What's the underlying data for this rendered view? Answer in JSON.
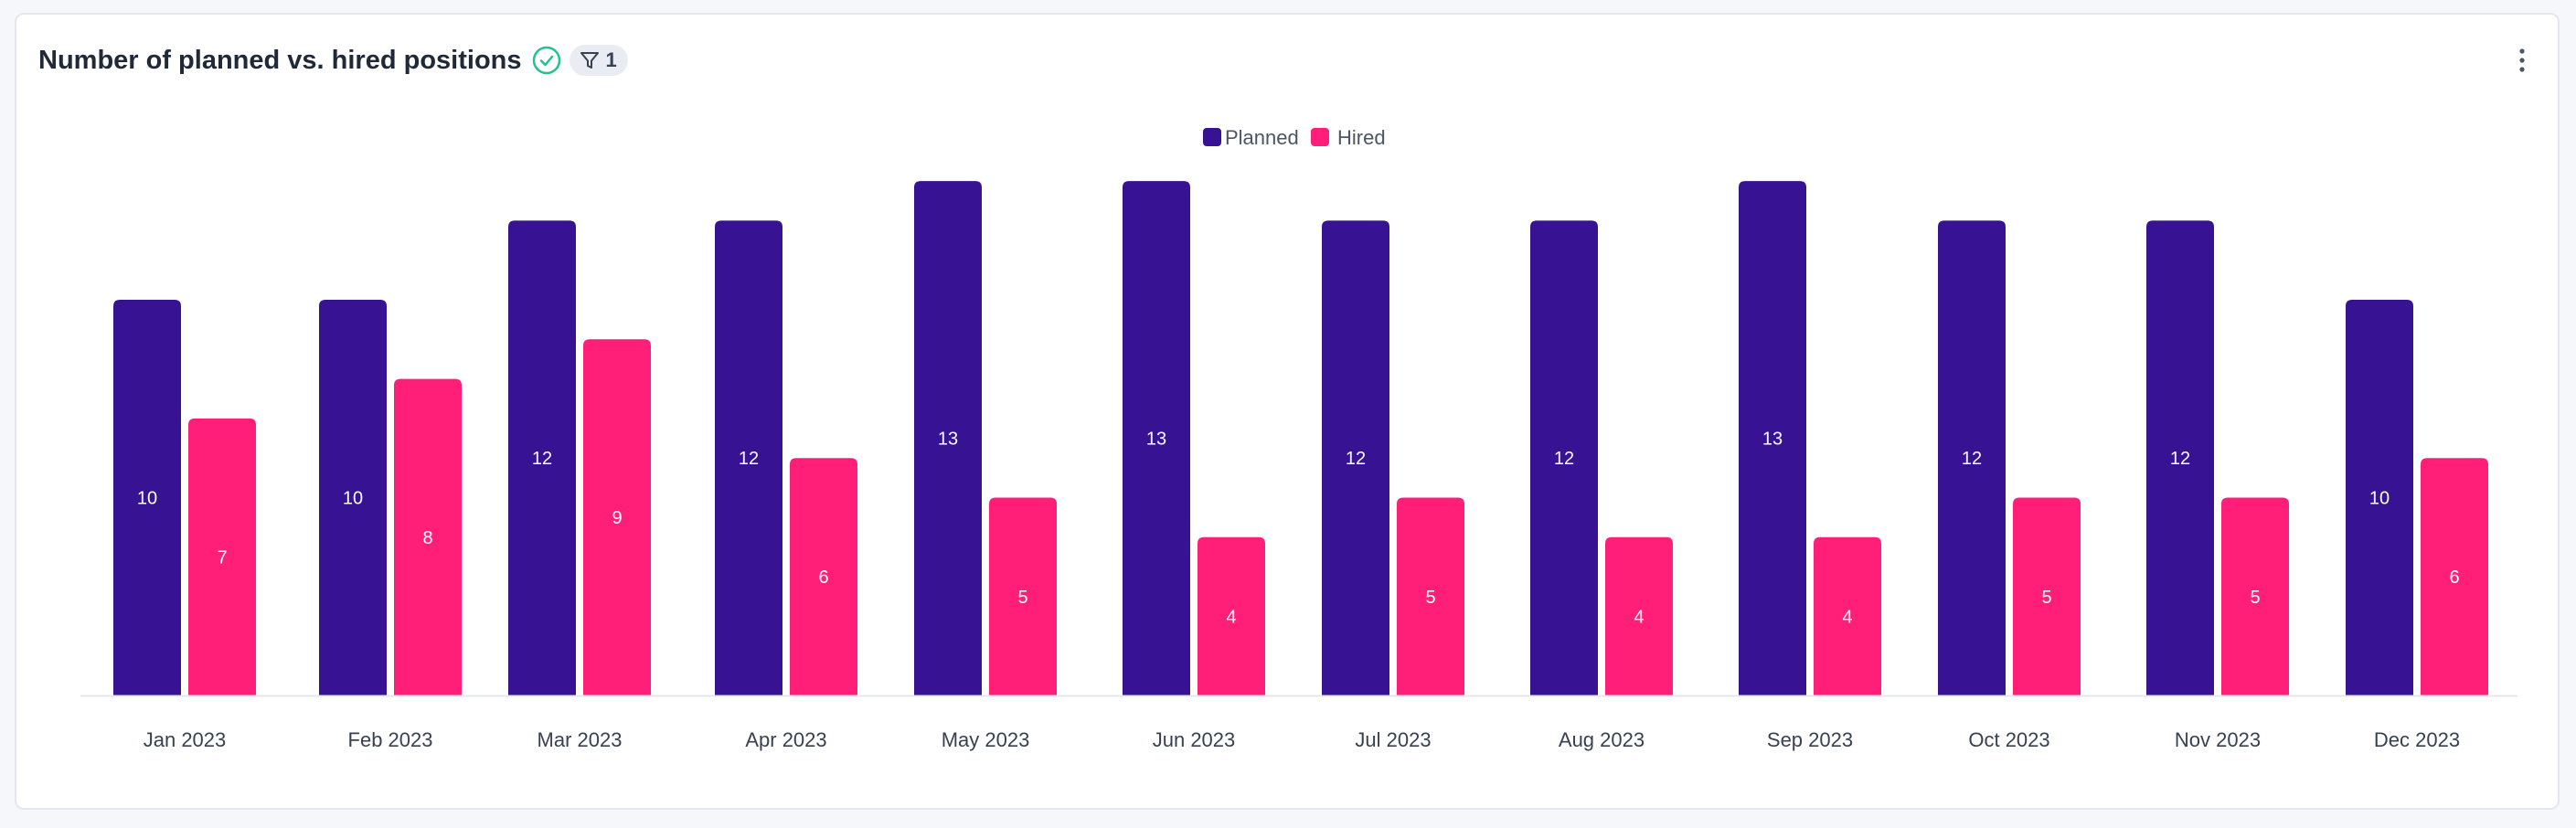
{
  "card": {
    "title": "Number of planned vs. hired positions",
    "status_icon": "check-circle-icon",
    "filter": {
      "icon": "filter-icon",
      "count": "1"
    },
    "menu_icon": "more-vertical-icon"
  },
  "colors": {
    "planned": "#371393",
    "hired": "#ff1f78",
    "check": "#22c38e",
    "axis": "#e5e7eb"
  },
  "chart_data": {
    "type": "bar",
    "title": "Number of planned vs. hired positions",
    "xlabel": "",
    "ylabel": "",
    "ylim": [
      0,
      13.5
    ],
    "grid": false,
    "legend": "top-center",
    "categories": [
      "Jan 2023",
      "Feb 2023",
      "Mar 2023",
      "Apr 2023",
      "May 2023",
      "Jun 2023",
      "Jul 2023",
      "Aug 2023",
      "Sep 2023",
      "Oct 2023",
      "Nov 2023",
      "Dec 2023"
    ],
    "series": [
      {
        "name": "Planned",
        "values": [
          10,
          10,
          12,
          12,
          13,
          13,
          12,
          12,
          13,
          12,
          12,
          10
        ]
      },
      {
        "name": "Hired",
        "values": [
          7,
          8,
          9,
          6,
          5,
          4,
          5,
          4,
          4,
          5,
          5,
          6
        ]
      }
    ]
  }
}
